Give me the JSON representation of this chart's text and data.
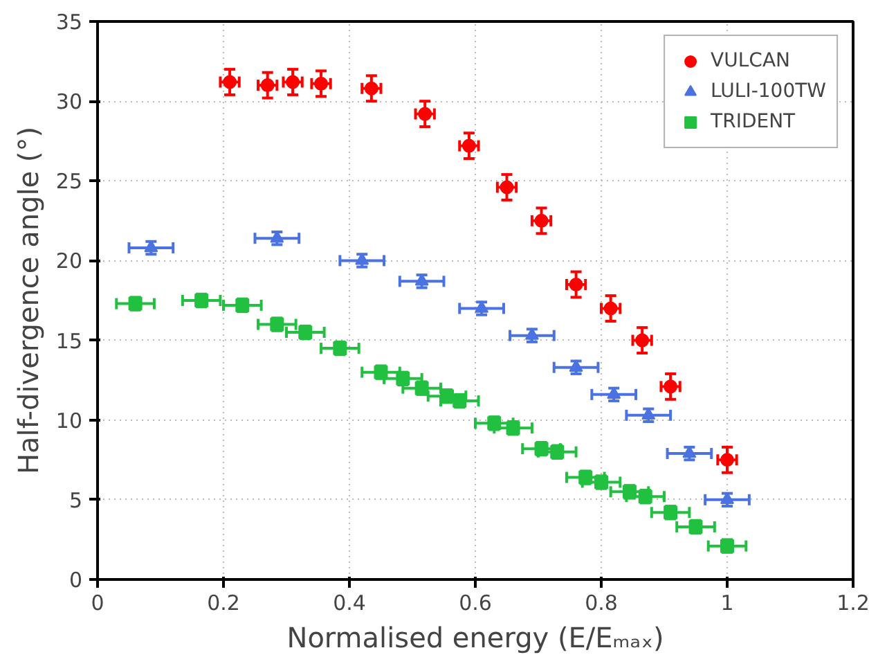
{
  "chart_data": {
    "type": "scatter",
    "xlabel": "Normalised energy (E/Eₘₐₓ)",
    "ylabel": "Half-divergence angle (°)",
    "xlim": [
      0,
      1.2
    ],
    "ylim": [
      0,
      35
    ],
    "xticks": [
      0,
      {
        "value": 0.2,
        "label": "0.2"
      },
      {
        "value": 0.4,
        "label": "0.4"
      },
      {
        "value": 0.6,
        "label": "0.6"
      },
      {
        "value": 0.8,
        "label": "0.8"
      },
      1,
      {
        "value": 1.2,
        "label": "1.2"
      }
    ],
    "yticks": [
      0,
      5,
      10,
      15,
      20,
      25,
      30,
      35
    ],
    "grid": true,
    "legend": "top right",
    "series": [
      {
        "name": "VULCAN",
        "color": "#ff0000",
        "marker": "circle",
        "x": [
          0.21,
          0.27,
          0.31,
          0.355,
          0.435,
          0.52,
          0.59,
          0.65,
          0.705,
          0.76,
          0.815,
          0.865,
          0.91,
          1.0
        ],
        "values": [
          31.2,
          31.0,
          31.2,
          31.1,
          30.8,
          29.2,
          27.2,
          24.6,
          22.5,
          18.5,
          17.0,
          15.0,
          12.1,
          7.5
        ],
        "errors": [
          0.8,
          0.8,
          0.8,
          0.8,
          0.8,
          0.8,
          0.8,
          0.8,
          0.8,
          0.8,
          0.8,
          0.8,
          0.8,
          0.8
        ],
        "xerrors": [
          0.015,
          0.015,
          0.015,
          0.015,
          0.015,
          0.015,
          0.015,
          0.015,
          0.015,
          0.015,
          0.015,
          0.015,
          0.015,
          0.015
        ]
      },
      {
        "name": "LULI-100TW",
        "color": "#4a72e0",
        "marker": "triangle",
        "x": [
          0.085,
          0.285,
          0.42,
          0.515,
          0.61,
          0.69,
          0.76,
          0.82,
          0.875,
          0.94,
          1.0
        ],
        "values": [
          20.8,
          21.4,
          20.0,
          18.7,
          17.0,
          15.3,
          13.3,
          11.6,
          10.3,
          7.9,
          5.0
        ],
        "errors": [
          0.4,
          0.4,
          0.4,
          0.4,
          0.4,
          0.4,
          0.4,
          0.4,
          0.4,
          0.4,
          0.4
        ],
        "xerrors": [
          0.035,
          0.035,
          0.035,
          0.035,
          0.035,
          0.035,
          0.035,
          0.035,
          0.035,
          0.035,
          0.035
        ]
      },
      {
        "name": "TRIDENT",
        "color": "#22c040",
        "marker": "square",
        "x": [
          0.06,
          0.165,
          0.23,
          0.285,
          0.33,
          0.385,
          0.45,
          0.485,
          0.515,
          0.555,
          0.575,
          0.63,
          0.66,
          0.705,
          0.73,
          0.775,
          0.8,
          0.845,
          0.87,
          0.91,
          0.95,
          1.0
        ],
        "values": [
          17.3,
          17.5,
          17.2,
          16.0,
          15.5,
          14.5,
          13.0,
          12.6,
          12.0,
          11.5,
          11.2,
          9.8,
          9.5,
          8.2,
          8.0,
          6.4,
          6.1,
          5.5,
          5.2,
          4.2,
          3.3,
          2.1
        ],
        "errors": [
          0.4,
          0.4,
          0.4,
          0.4,
          0.4,
          0.4,
          0.4,
          0.4,
          0.4,
          0.4,
          0.4,
          0.4,
          0.4,
          0.4,
          0.4,
          0.4,
          0.4,
          0.4,
          0.4,
          0.4,
          0.4,
          0.4
        ],
        "xerrors": [
          0.03,
          0.03,
          0.03,
          0.03,
          0.03,
          0.03,
          0.03,
          0.03,
          0.03,
          0.03,
          0.03,
          0.03,
          0.03,
          0.03,
          0.03,
          0.03,
          0.03,
          0.03,
          0.03,
          0.03,
          0.03,
          0.03
        ]
      }
    ]
  }
}
